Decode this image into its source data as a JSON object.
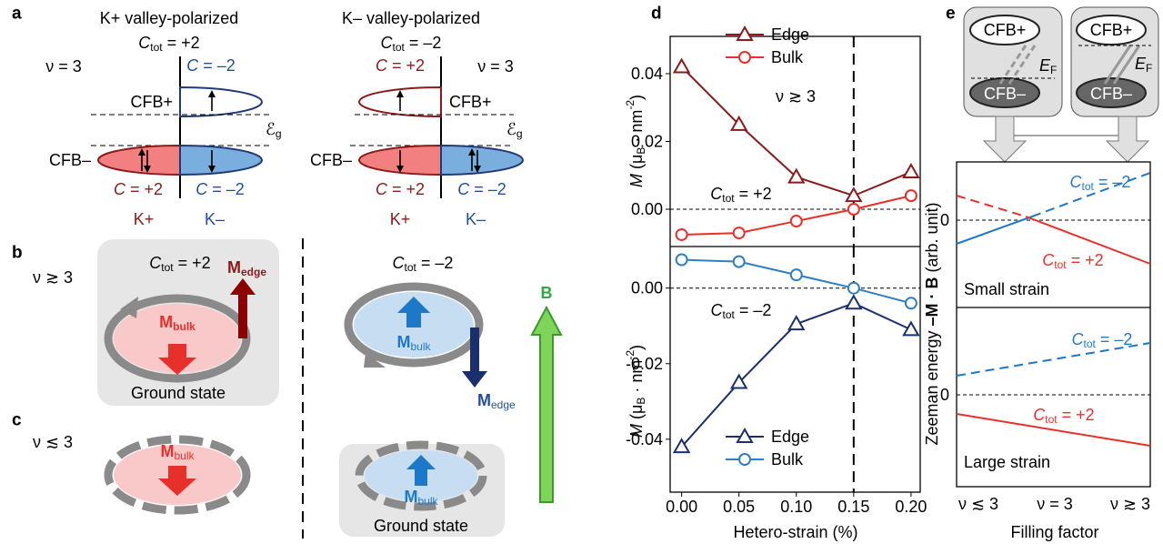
{
  "panel_labels": {
    "a": "a",
    "b": "b",
    "c": "c",
    "d": "d",
    "e": "e"
  },
  "panel_a": {
    "left": {
      "title": "K+ valley-polarized",
      "ctot": [
        "C",
        "tot",
        " = +2"
      ],
      "nu": "ν = 3",
      "upper_band": "CFB+",
      "upper_c": [
        "C",
        " = –2"
      ],
      "gap": [
        "ℰ",
        "g"
      ],
      "lower_band": "CFB–",
      "lower_c_left": [
        "C",
        " = +2"
      ],
      "lower_c_right": [
        "C",
        " = –2"
      ],
      "valley_left": "K+",
      "valley_right": "K–"
    },
    "right": {
      "title": "K– valley-polarized",
      "ctot": [
        "C",
        "tot",
        " = –2"
      ],
      "nu": "ν = 3",
      "upper_band": "CFB+",
      "upper_c": [
        "C",
        " = +2"
      ],
      "gap": [
        "ℰ",
        "g"
      ],
      "lower_band": "CFB–",
      "lower_c_left": [
        "C",
        " = +2"
      ],
      "lower_c_right": [
        "C",
        " = –2"
      ],
      "valley_left": "K+",
      "valley_right": "K–"
    }
  },
  "panel_b": {
    "nu": "ν ≳ 3",
    "left_ctot": [
      "C",
      "tot",
      " = +2"
    ],
    "left_medge": [
      "M",
      "edge"
    ],
    "left_mbulk": [
      "M",
      "bulk"
    ],
    "left_caption": "Ground state",
    "right_ctot": [
      "C",
      "tot",
      " = –2"
    ],
    "right_mbulk": [
      "M",
      "bulk"
    ],
    "right_medge": [
      "M",
      "edge"
    ],
    "field": "B"
  },
  "panel_c": {
    "nu": "ν ≲ 3",
    "left_mbulk": [
      "M",
      "bulk"
    ],
    "right_mbulk": [
      "M",
      "bulk"
    ],
    "right_caption": "Ground state"
  },
  "panel_e": {
    "box_left": {
      "upper": "CFB+",
      "lower": "CFB–",
      "fermi": [
        "E",
        "F"
      ]
    },
    "box_right": {
      "upper": "CFB+",
      "lower": "CFB–",
      "fermi": [
        "E",
        "F"
      ]
    },
    "ylabel": [
      "Zeeman energy ",
      "–M · B",
      " (arb. unit)"
    ],
    "zero_top": "0",
    "zero_bottom": "0",
    "small": {
      "blue": [
        "C",
        "tot",
        " = –2"
      ],
      "red": [
        "C",
        "tot",
        " = +2"
      ],
      "caption": "Small strain"
    },
    "large": {
      "blue": [
        "C",
        "tot",
        " = –2"
      ],
      "red": [
        "C",
        "tot",
        " = +2"
      ],
      "caption": "Large strain"
    },
    "xticks": [
      "ν ≲ 3",
      "ν = 3",
      "ν ≳ 3"
    ],
    "xlabel": "Filling factor"
  },
  "chart_data": [
    {
      "type": "line",
      "x": [
        0,
        0.05,
        0.1,
        0.15,
        0.2
      ],
      "xlim": [
        -0.01,
        0.208
      ],
      "ylim": [
        -0.011,
        0.051
      ],
      "yticks": [
        {
          "value": 0,
          "label": "0.00"
        },
        0.02,
        0.04
      ],
      "vline": 0.15,
      "hline": 0,
      "ylabel": [
        "M",
        " (μ",
        "B",
        " · nm",
        "-2",
        ")"
      ],
      "nu_note": "ν ≳ 3",
      "ctot_note": [
        "C",
        "tot",
        " = +2"
      ],
      "series": [
        {
          "name": "Edge",
          "color": "#8b1a1a",
          "marker": "triangle",
          "values": [
            0.042,
            0.025,
            0.0095,
            0.004,
            0.011
          ]
        },
        {
          "name": "Bulk",
          "color": "#e8302a",
          "marker": "circle",
          "values": [
            -0.0075,
            -0.007,
            -0.0035,
            0,
            0.004
          ]
        }
      ]
    },
    {
      "type": "line",
      "x": [
        0,
        0.05,
        0.1,
        0.15,
        0.2
      ],
      "xlim": [
        -0.01,
        0.208
      ],
      "ylim": [
        -0.054,
        0.011
      ],
      "yticks": [
        {
          "value": 0,
          "label": "0.00"
        },
        -0.02,
        -0.04
      ],
      "xticks": [
        {
          "value": 0,
          "label": "0.00"
        },
        0.05,
        {
          "value": 0.1,
          "label": "0.10"
        },
        0.15,
        {
          "value": 0.2,
          "label": "0.20"
        }
      ],
      "vline": 0.15,
      "hline": 0,
      "xlabel": "Hetero-strain (%)",
      "ylabel": [
        "M",
        " (μ",
        "B",
        " · nm",
        "-2",
        ")"
      ],
      "ctot_note": [
        "C",
        "tot",
        " = –2"
      ],
      "series": [
        {
          "name": "Edge",
          "color": "#1a2f6e",
          "marker": "triangle",
          "values": [
            -0.042,
            -0.025,
            -0.0095,
            -0.004,
            -0.011
          ]
        },
        {
          "name": "Bulk",
          "color": "#2e7fc0",
          "marker": "circle",
          "values": [
            0.0075,
            0.007,
            0.0035,
            0,
            -0.004
          ]
        }
      ]
    }
  ]
}
